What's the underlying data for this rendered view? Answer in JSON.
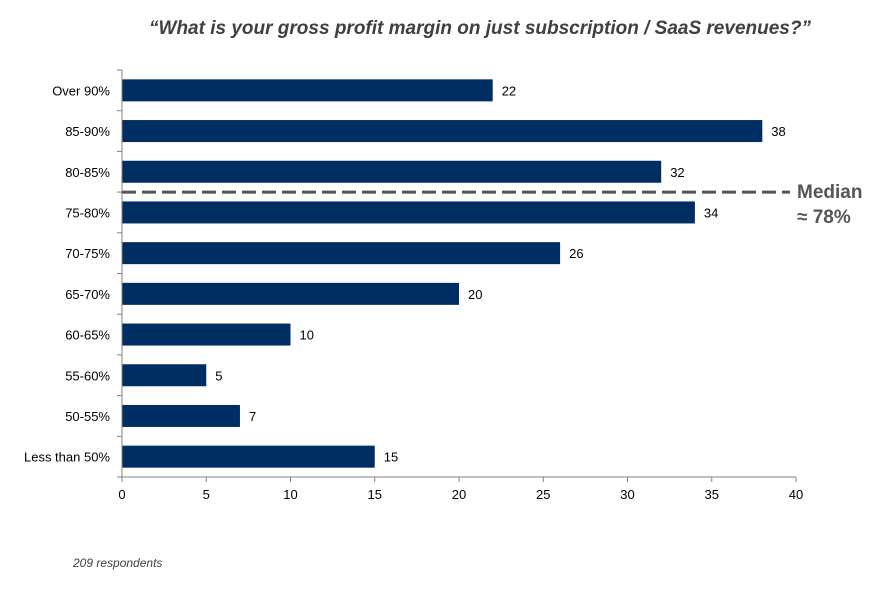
{
  "chart_data": {
    "type": "bar",
    "orientation": "horizontal",
    "title": "“What is your gross profit margin on just subscription / SaaS revenues?”",
    "categories": [
      "Over 90%",
      "85-90%",
      "80-85%",
      "75-80%",
      "70-75%",
      "65-70%",
      "60-65%",
      "55-60%",
      "50-55%",
      "Less than 50%"
    ],
    "values": [
      22,
      38,
      32,
      34,
      26,
      20,
      10,
      5,
      7,
      15
    ],
    "xlim": [
      0,
      40
    ],
    "xticks": [
      0,
      5,
      10,
      15,
      20,
      25,
      30,
      35,
      40
    ],
    "grid": false,
    "bar_color": "#002D62",
    "annotation": {
      "line1": "Median",
      "line2": "≈ 78%",
      "color": "#555555",
      "position_between": [
        "80-85%",
        "75-80%"
      ]
    },
    "footnote": "209 respondents"
  }
}
